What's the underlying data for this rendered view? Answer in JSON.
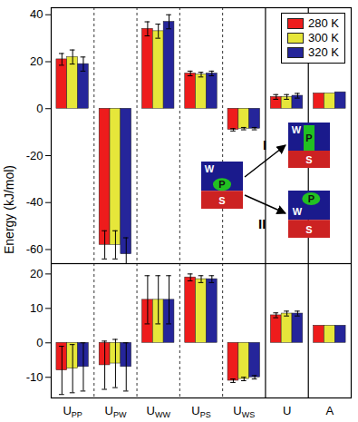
{
  "chart_data": {
    "type": "bar",
    "ylabel": "Energy (kJ/mol)",
    "categories": [
      "UPP",
      "UPW",
      "UWW",
      "UPS",
      "UWS",
      "U",
      "A"
    ],
    "legend": "top-right",
    "series": [
      {
        "name": "280 K",
        "color": "#ee1c1c"
      },
      {
        "name": "300 K",
        "color": "#e6e63a"
      },
      {
        "name": "320 K",
        "color": "#25259a"
      }
    ],
    "panels": [
      {
        "ylim": [
          -66,
          43
        ],
        "yticks": [
          -60,
          -40,
          -20,
          0,
          20,
          40
        ],
        "values": [
          [
            21,
            -58,
            34,
            15,
            -9,
            5,
            6.5
          ],
          [
            22,
            -58,
            33,
            14.5,
            -8.5,
            5,
            6.5
          ],
          [
            19,
            -62,
            37,
            15,
            -8.5,
            5.5,
            7
          ]
        ],
        "errors": [
          [
            2.5,
            6,
            3,
            1,
            0.5,
            1,
            null
          ],
          [
            3,
            6,
            3,
            1,
            0.5,
            1,
            null
          ],
          [
            3,
            7,
            3,
            1,
            0.5,
            1,
            null
          ]
        ]
      },
      {
        "ylim": [
          -16,
          23
        ],
        "yticks": [
          -10,
          0,
          10,
          20
        ],
        "values": [
          [
            -8,
            -6.5,
            12.5,
            19,
            -11,
            8,
            5
          ],
          [
            -7.5,
            -6,
            12.5,
            18.5,
            -10.5,
            8.5,
            5
          ],
          [
            -7,
            -7,
            12.5,
            18.5,
            -10,
            8.5,
            5
          ]
        ],
        "errors": [
          [
            7,
            7,
            7,
            1,
            0.5,
            0.7,
            null
          ],
          [
            7,
            7,
            7,
            1,
            0.5,
            0.7,
            null
          ],
          [
            7,
            7,
            7,
            1,
            0.5,
            0.7,
            null
          ]
        ]
      }
    ],
    "annotations": [
      {
        "labels": [
          "W",
          "P",
          "S"
        ]
      },
      {
        "text": "I",
        "labels": [
          "W",
          "P",
          "S"
        ]
      },
      {
        "text": "II",
        "labels": [
          "W",
          "P",
          "S"
        ]
      }
    ]
  }
}
